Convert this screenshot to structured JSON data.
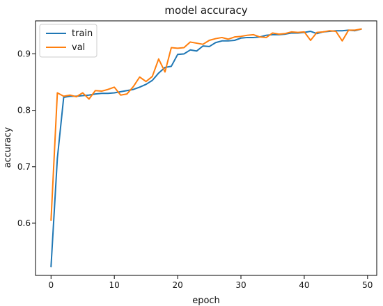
{
  "chart_data": {
    "type": "line",
    "title": "model accuracy",
    "xlabel": "epoch",
    "ylabel": "accuracy",
    "x": [
      0,
      1,
      2,
      3,
      4,
      5,
      6,
      7,
      8,
      9,
      10,
      11,
      12,
      13,
      14,
      15,
      16,
      17,
      18,
      19,
      20,
      21,
      22,
      23,
      24,
      25,
      26,
      27,
      28,
      29,
      30,
      31,
      32,
      33,
      34,
      35,
      36,
      37,
      38,
      39,
      40,
      41,
      42,
      43,
      44,
      45,
      46,
      47,
      48,
      49
    ],
    "xlim": [
      -2.45,
      51.45
    ],
    "ylim": [
      0.5075,
      0.9585
    ],
    "xticks": [
      0,
      10,
      20,
      30,
      40,
      50
    ],
    "yticks": [
      0.6,
      0.7,
      0.8,
      0.9
    ],
    "legend_position": "upper left",
    "grid": false,
    "series": [
      {
        "name": "train",
        "color": "#1f77b4",
        "values": [
          0.523,
          0.715,
          0.823,
          0.825,
          0.825,
          0.826,
          0.827,
          0.829,
          0.83,
          0.83,
          0.831,
          0.833,
          0.835,
          0.837,
          0.841,
          0.846,
          0.853,
          0.866,
          0.876,
          0.878,
          0.899,
          0.9,
          0.907,
          0.905,
          0.914,
          0.913,
          0.92,
          0.923,
          0.923,
          0.924,
          0.928,
          0.929,
          0.929,
          0.93,
          0.933,
          0.934,
          0.934,
          0.935,
          0.937,
          0.937,
          0.938,
          0.94,
          0.936,
          0.939,
          0.94,
          0.941,
          0.941,
          0.942,
          0.941,
          0.944
        ]
      },
      {
        "name": "val",
        "color": "#ff7f0e",
        "values": [
          0.605,
          0.831,
          0.825,
          0.827,
          0.824,
          0.831,
          0.82,
          0.835,
          0.834,
          0.837,
          0.841,
          0.827,
          0.829,
          0.842,
          0.859,
          0.851,
          0.86,
          0.891,
          0.868,
          0.911,
          0.91,
          0.911,
          0.921,
          0.919,
          0.917,
          0.924,
          0.927,
          0.929,
          0.926,
          0.93,
          0.931,
          0.933,
          0.934,
          0.93,
          0.929,
          0.937,
          0.935,
          0.936,
          0.939,
          0.938,
          0.939,
          0.924,
          0.938,
          0.939,
          0.941,
          0.94,
          0.923,
          0.942,
          0.942,
          0.944
        ]
      }
    ]
  }
}
